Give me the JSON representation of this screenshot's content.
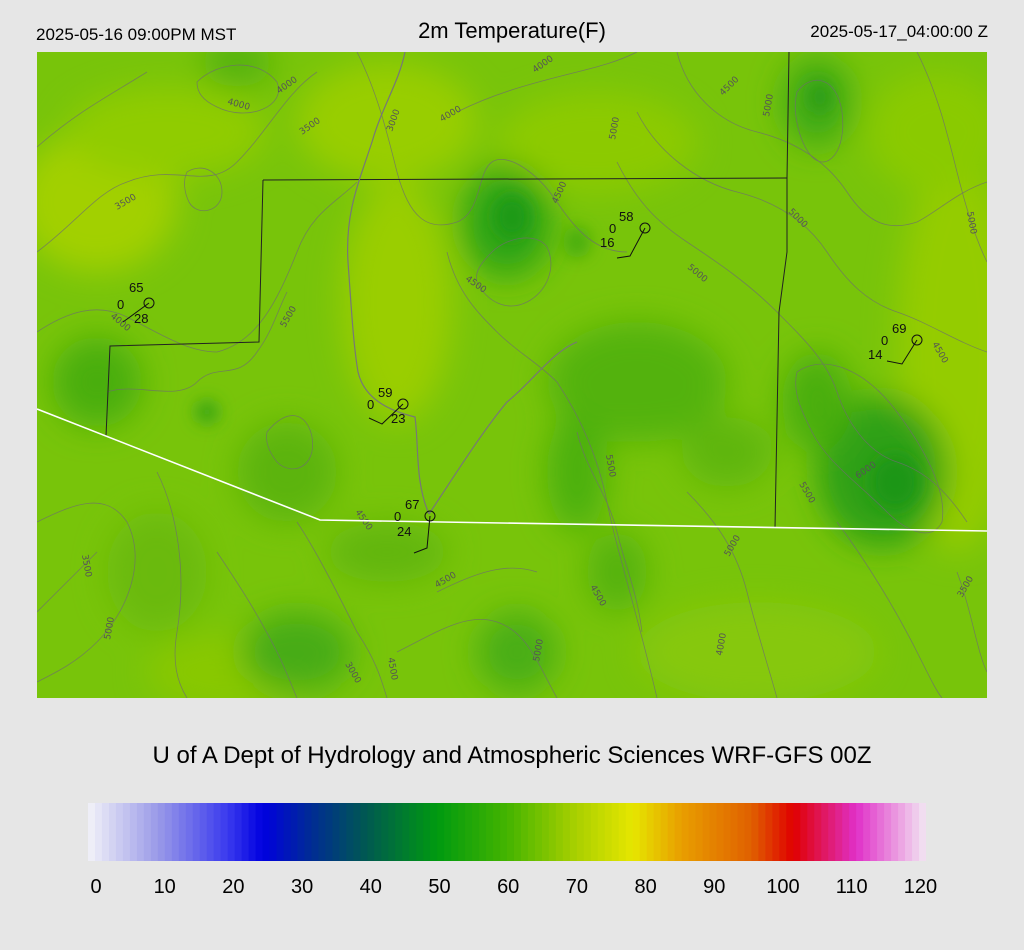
{
  "header": {
    "local_time": "2025-05-16 09:00PM MST",
    "title": "2m Temperature(F)",
    "utc_time": "2025-05-17_04:00:00 Z"
  },
  "credit": "U of A Dept of Hydrology and Atmospheric Sciences WRF-GFS 00Z",
  "colorbar": {
    "ticks": [
      "0",
      "10",
      "20",
      "30",
      "40",
      "50",
      "60",
      "70",
      "80",
      "90",
      "100",
      "110",
      "120"
    ],
    "stops": [
      {
        "value": 0,
        "color": "#f2f2f8"
      },
      {
        "value": 10,
        "color": "#9a9ae8"
      },
      {
        "value": 20,
        "color": "#3a3aee"
      },
      {
        "value": 25,
        "color": "#0000e0"
      },
      {
        "value": 32,
        "color": "#002c94"
      },
      {
        "value": 40,
        "color": "#005a50"
      },
      {
        "value": 50,
        "color": "#009a10"
      },
      {
        "value": 60,
        "color": "#44b400"
      },
      {
        "value": 70,
        "color": "#aad000"
      },
      {
        "value": 78,
        "color": "#e6e600"
      },
      {
        "value": 85,
        "color": "#e89e00"
      },
      {
        "value": 95,
        "color": "#e06000"
      },
      {
        "value": 101,
        "color": "#e00000"
      },
      {
        "value": 110,
        "color": "#e030c8"
      },
      {
        "value": 120,
        "color": "#f2e6f2"
      }
    ]
  },
  "stations": [
    {
      "name": "station-west",
      "temp": "65",
      "left": "0",
      "bottom": "28"
    },
    {
      "name": "station-center",
      "temp": "59",
      "left": "0",
      "bottom": "23"
    },
    {
      "name": "station-south",
      "temp": "67",
      "left": "0",
      "bottom": "24"
    },
    {
      "name": "station-north",
      "temp": "58",
      "left": "0",
      "bottom": "16"
    },
    {
      "name": "station-east",
      "temp": "69",
      "left": "0",
      "bottom": "14"
    }
  ],
  "contour_labels": [
    "4000",
    "4000",
    "4000",
    "3000",
    "3500",
    "3500",
    "4000",
    "4500",
    "5000",
    "5000",
    "5000",
    "4500",
    "4500",
    "5000",
    "5000",
    "5500",
    "4000",
    "4500",
    "4500",
    "3500",
    "4500",
    "5500",
    "6000",
    "5500",
    "5000",
    "4500",
    "5000",
    "5000",
    "3500",
    "3000",
    "4500",
    "4000",
    "4500",
    "4000",
    "4500",
    "5000",
    "5500",
    "4500"
  ]
}
